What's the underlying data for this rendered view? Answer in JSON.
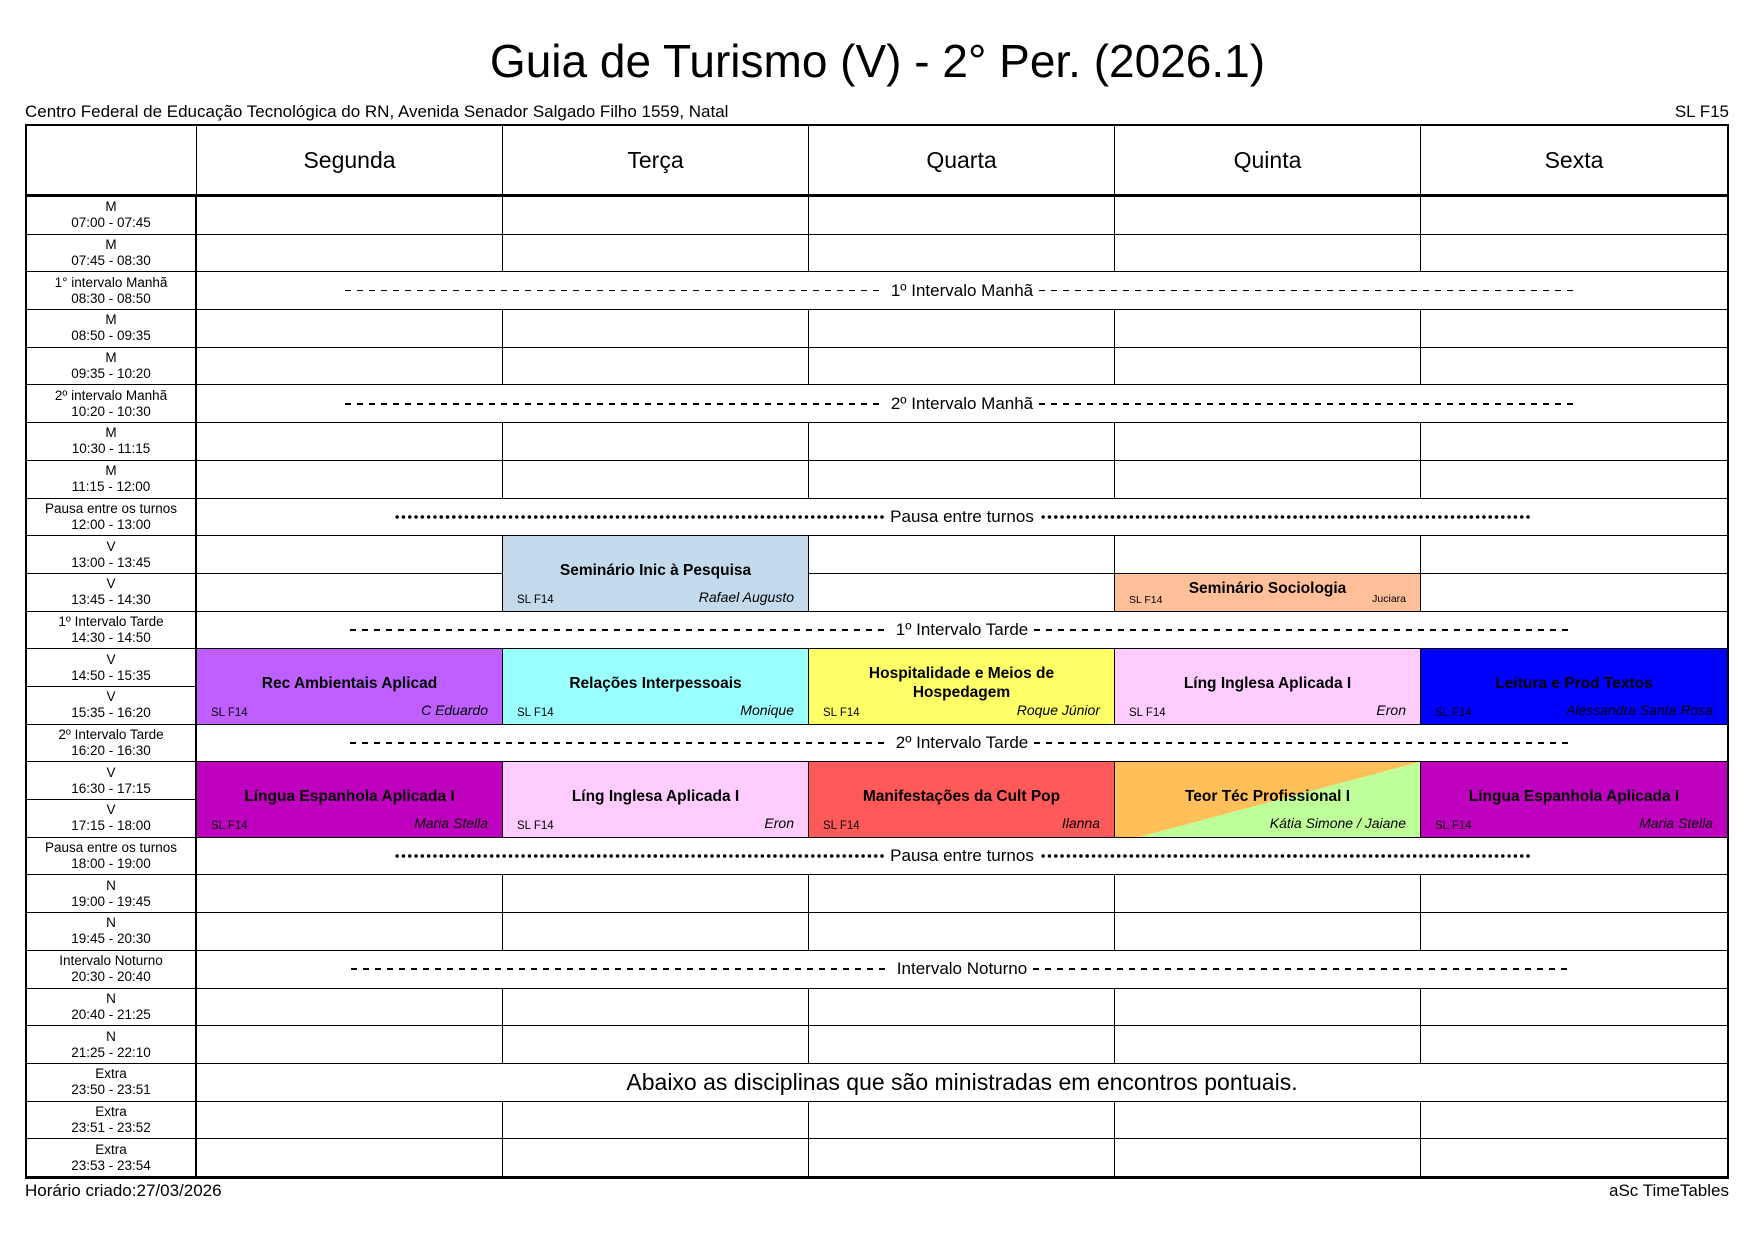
{
  "header": {
    "title": "Guia de Turismo (V) - 2° Per. (2026.1)",
    "subtitle": "Centro Federal de Educação Tecnológica do RN, Avenida Senador Salgado Filho 1559, Natal",
    "room": "SL F15"
  },
  "footer": {
    "created": "Horário criado:27/03/2026",
    "software": "aSc TimeTables"
  },
  "days": [
    "Segunda",
    "Terça",
    "Quarta",
    "Quinta",
    "Sexta"
  ],
  "rows": [
    {
      "label": "M",
      "time": "07:00 - 07:45"
    },
    {
      "label": "M",
      "time": "07:45 - 08:30"
    },
    {
      "label": "1° intervalo Manhã",
      "time": "08:30 - 08:50",
      "break": "1º Intervalo Manhã",
      "style": "dash"
    },
    {
      "label": "M",
      "time": "08:50 - 09:35"
    },
    {
      "label": "M",
      "time": "09:35 - 10:20"
    },
    {
      "label": "2º intervalo Manhã",
      "time": "10:20 - 10:30",
      "break": "2º Intervalo Manhã",
      "style": "dash"
    },
    {
      "label": "M",
      "time": "10:30 - 11:15"
    },
    {
      "label": "M",
      "time": "11:15 - 12:00"
    },
    {
      "label": "Pausa entre os turnos",
      "time": "12:00 - 13:00",
      "break": "Pausa entre turnos",
      "style": "dot"
    },
    {
      "label": "V",
      "time": "13:00 - 13:45"
    },
    {
      "label": "V",
      "time": "13:45 - 14:30"
    },
    {
      "label": "1º Intervalo Tarde",
      "time": "14:30 - 14:50",
      "break": "1º Intervalo Tarde",
      "style": "dash"
    },
    {
      "label": "V",
      "time": "14:50 - 15:35"
    },
    {
      "label": "V",
      "time": "15:35 - 16:20"
    },
    {
      "label": "2º Intervalo Tarde",
      "time": "16:20 - 16:30",
      "break": "2º Intervalo Tarde",
      "style": "dash"
    },
    {
      "label": "V",
      "time": "16:30 - 17:15"
    },
    {
      "label": "V",
      "time": "17:15 - 18:00"
    },
    {
      "label": "Pausa entre os turnos",
      "time": "18:00 - 19:00",
      "break": "Pausa entre turnos",
      "style": "dot"
    },
    {
      "label": "N",
      "time": "19:00 - 19:45"
    },
    {
      "label": "N",
      "time": "19:45 - 20:30"
    },
    {
      "label": "Intervalo Noturno",
      "time": "20:30 - 20:40",
      "break": "Intervalo Noturno",
      "style": "dash"
    },
    {
      "label": "N",
      "time": "20:40 - 21:25"
    },
    {
      "label": "N",
      "time": "21:25 - 22:10"
    },
    {
      "label": "Extra",
      "time": "23:50 - 23:51",
      "notice": "Abaixo as disciplinas que são ministradas em encontros pontuais."
    },
    {
      "label": "Extra",
      "time": "23:51 - 23:52"
    },
    {
      "label": "Extra",
      "time": "23:53 - 23:54"
    }
  ],
  "lessons": [
    {
      "day": 1,
      "start": 9,
      "span": 2,
      "subject": "Seminário Inic à Pesquisa",
      "room": "SL F14",
      "teacher": "Rafael Augusto",
      "color": "#c3d9ec"
    },
    {
      "day": 3,
      "start": 10,
      "span": 1,
      "subject": "Seminário Sociologia",
      "room": "SL F14",
      "teacher": "Juciara",
      "color": "#ffbf99",
      "small": true
    },
    {
      "day": 0,
      "start": 12,
      "span": 2,
      "subject": "Rec Ambientais Aplicad",
      "room": "SL F14",
      "teacher": "C Eduardo",
      "color": "#bf5fff"
    },
    {
      "day": 1,
      "start": 12,
      "span": 2,
      "subject": "Relações Interpessoais",
      "room": "SL F14",
      "teacher": "Monique",
      "color": "#99ffff"
    },
    {
      "day": 2,
      "start": 12,
      "span": 2,
      "subject": "Hospitalidade e Meios de Hospedagem",
      "room": "SL F14",
      "teacher": "Roque Júnior",
      "color": "#ffff66"
    },
    {
      "day": 3,
      "start": 12,
      "span": 2,
      "subject": "Líng Inglesa Aplicada I",
      "room": "SL F14",
      "teacher": "Eron",
      "color": "#ffccff"
    },
    {
      "day": 4,
      "start": 12,
      "span": 2,
      "subject": "Leitura e Prod Textos",
      "room": "SL F14",
      "teacher": "Alessandra Santa Rosa",
      "color": "#0000ff"
    },
    {
      "day": 0,
      "start": 15,
      "span": 2,
      "subject": "Língua Espanhola Aplicada I",
      "room": "SL F14",
      "teacher": "Maria Stella",
      "color": "#bf00bf"
    },
    {
      "day": 1,
      "start": 15,
      "span": 2,
      "subject": "Líng Inglesa Aplicada I",
      "room": "SL F14",
      "teacher": "Eron",
      "color": "#ffccff"
    },
    {
      "day": 2,
      "start": 15,
      "span": 2,
      "subject": "Manifestações da Cult Pop",
      "room": "SL F14",
      "teacher": "Ilanna",
      "color": "#ff5959"
    },
    {
      "day": 3,
      "start": 15,
      "span": 2,
      "subject": "Teor Téc Profissional I",
      "teacher": "Kátia Simone / Jaiane",
      "color": "#ffbf59",
      "color2": "#bfff99"
    },
    {
      "day": 4,
      "start": 15,
      "span": 2,
      "subject": "Língua Espanhola Aplicada I",
      "room": "SL F14",
      "teacher": "Maria Stella",
      "color": "#bf00bf"
    }
  ]
}
